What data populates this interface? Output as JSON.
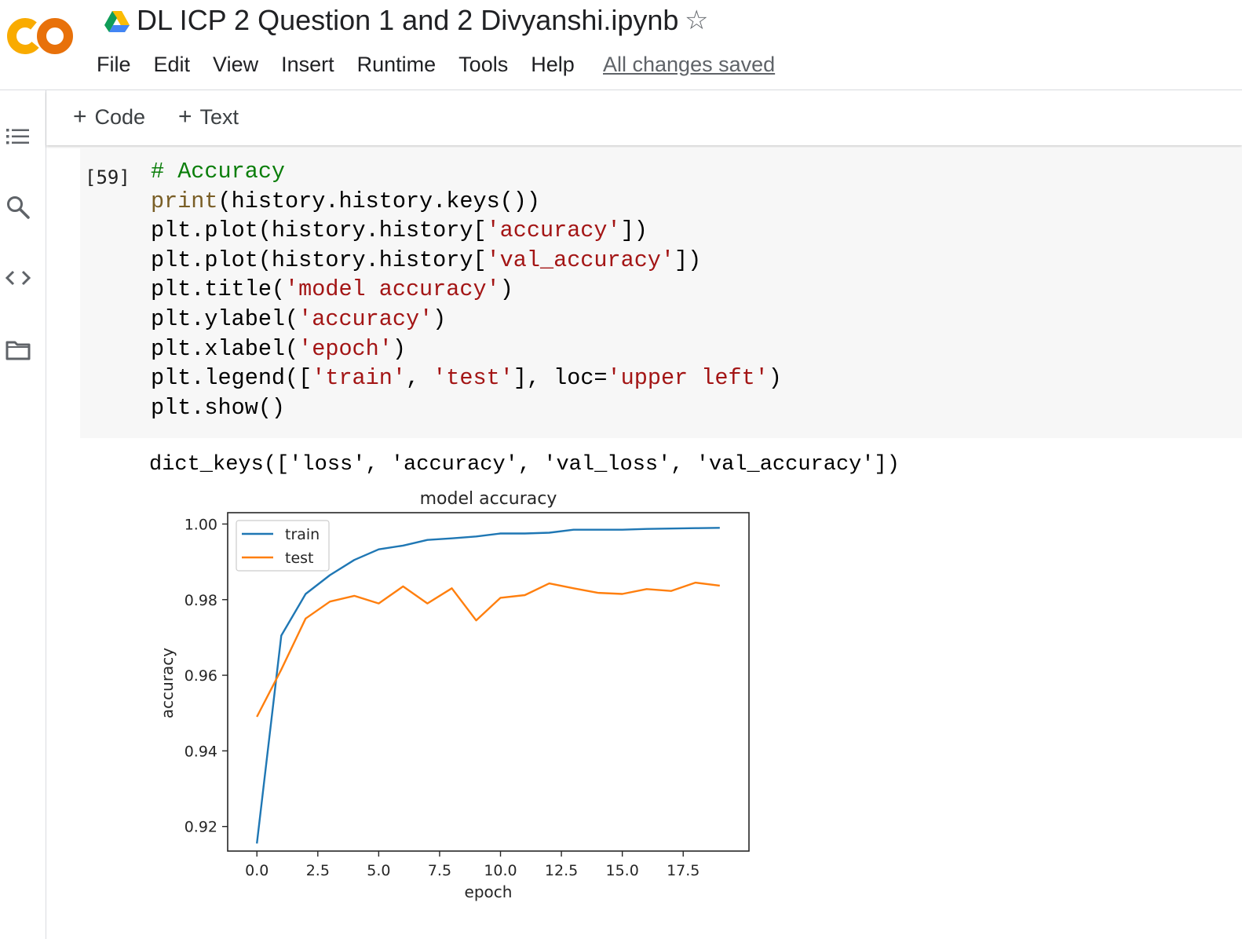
{
  "header": {
    "notebook_title": "DL ICP 2 Question 1 and 2 Divyanshi.ipynb",
    "logo_icon": "colab-logo-icon",
    "drive_icon": "google-drive-icon",
    "star_icon": "star-outline-icon",
    "star_glyph": "☆",
    "menu": [
      "File",
      "Edit",
      "View",
      "Insert",
      "Runtime",
      "Tools",
      "Help"
    ],
    "save_status": "All changes saved"
  },
  "sidebar": {
    "icons": [
      "table-of-contents-icon",
      "search-icon",
      "code-snippets-icon",
      "files-folder-icon"
    ]
  },
  "toolbar": {
    "code_label": "Code",
    "text_label": "Text",
    "plus_glyph": "+"
  },
  "cell": {
    "execution_count": "[59]",
    "code_lines": [
      [
        {
          "t": "# Accuracy",
          "c": "com"
        }
      ],
      [
        {
          "t": "print",
          "c": "fn"
        },
        {
          "t": "(history.history.keys())",
          "c": ""
        }
      ],
      [
        {
          "t": "plt.plot(history.history[",
          "c": ""
        },
        {
          "t": "'accuracy'",
          "c": "str"
        },
        {
          "t": "])",
          "c": ""
        }
      ],
      [
        {
          "t": "plt.plot(history.history[",
          "c": ""
        },
        {
          "t": "'val_accuracy'",
          "c": "str"
        },
        {
          "t": "])",
          "c": ""
        }
      ],
      [
        {
          "t": "plt.title(",
          "c": ""
        },
        {
          "t": "'model accuracy'",
          "c": "str"
        },
        {
          "t": ")",
          "c": ""
        }
      ],
      [
        {
          "t": "plt.ylabel(",
          "c": ""
        },
        {
          "t": "'accuracy'",
          "c": "str"
        },
        {
          "t": ")",
          "c": ""
        }
      ],
      [
        {
          "t": "plt.xlabel(",
          "c": ""
        },
        {
          "t": "'epoch'",
          "c": "str"
        },
        {
          "t": ")",
          "c": ""
        }
      ],
      [
        {
          "t": "plt.legend([",
          "c": ""
        },
        {
          "t": "'train'",
          "c": "str"
        },
        {
          "t": ", ",
          "c": ""
        },
        {
          "t": "'test'",
          "c": "str"
        },
        {
          "t": "], loc=",
          "c": ""
        },
        {
          "t": "'upper left'",
          "c": "str"
        },
        {
          "t": ")",
          "c": ""
        }
      ],
      [
        {
          "t": "plt.show()",
          "c": ""
        }
      ]
    ],
    "output_text": "dict_keys(['loss', 'accuracy', 'val_loss', 'val_accuracy'])"
  },
  "chart_data": {
    "type": "line",
    "title": "model accuracy",
    "xlabel": "epoch",
    "ylabel": "accuracy",
    "xlim": [
      -1.2,
      20.2
    ],
    "ylim": [
      0.9135,
      1.003
    ],
    "xticks": [
      0.0,
      2.5,
      5.0,
      7.5,
      10.0,
      12.5,
      15.0,
      17.5
    ],
    "xtick_labels": [
      "0.0",
      "2.5",
      "5.0",
      "7.5",
      "10.0",
      "12.5",
      "15.0",
      "17.5"
    ],
    "yticks": [
      0.92,
      0.94,
      0.96,
      0.98,
      1.0
    ],
    "ytick_labels": [
      "0.92",
      "0.94",
      "0.96",
      "0.98",
      "1.00"
    ],
    "legend_position": "upper left",
    "grid": false,
    "x": [
      0,
      1,
      2,
      3,
      4,
      5,
      6,
      7,
      8,
      9,
      10,
      11,
      12,
      13,
      14,
      15,
      16,
      17,
      18,
      19
    ],
    "series": [
      {
        "name": "train",
        "color": "#1f77b4",
        "values": [
          0.9155,
          0.9705,
          0.9815,
          0.9865,
          0.9905,
          0.9933,
          0.9943,
          0.9958,
          0.9962,
          0.9967,
          0.9975,
          0.9975,
          0.9977,
          0.9985,
          0.9985,
          0.9985,
          0.9987,
          0.9988,
          0.9989,
          0.999
        ]
      },
      {
        "name": "test",
        "color": "#ff7f0e",
        "values": [
          0.949,
          0.9615,
          0.975,
          0.9795,
          0.981,
          0.979,
          0.9835,
          0.979,
          0.983,
          0.9745,
          0.9805,
          0.9812,
          0.9843,
          0.983,
          0.9818,
          0.9815,
          0.9828,
          0.9823,
          0.9845,
          0.9837
        ]
      }
    ]
  }
}
